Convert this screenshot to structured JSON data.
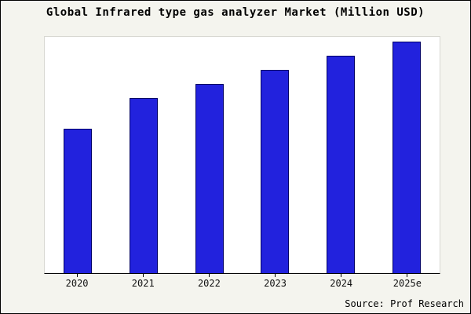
{
  "title": "Global Infrared type gas analyzer Market (Million USD)",
  "source": "Source: Prof Research",
  "chart_data": {
    "type": "bar",
    "title": "Global Infrared type gas analyzer Market (Million USD)",
    "categories": [
      "2020",
      "2021",
      "2022",
      "2023",
      "2024",
      "2025e"
    ],
    "values": [
      61,
      74,
      80,
      86,
      92,
      98
    ],
    "xlabel": "",
    "ylabel": "",
    "ylim": [
      0,
      100
    ],
    "grid": false,
    "legend": "none",
    "bar_color": "#2222dd",
    "bar_border_color": "#000066",
    "background_color": "#f4f4ee",
    "plot_background_color": "#ffffff"
  }
}
